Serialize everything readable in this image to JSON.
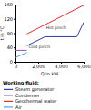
{
  "chart_data": {
    "type": "line",
    "x_label": "Q in kW",
    "y_label": "t in °C",
    "xlim": [
      0,
      6000
    ],
    "xticks": [
      0,
      {
        "value": 2000,
        "label": "2,000"
      },
      {
        "value": 4000,
        "label": "4,000"
      },
      {
        "value": 6000,
        "label": "6,000"
      }
    ],
    "ylim": [
      0,
      160
    ],
    "yticks": [
      0,
      40,
      80,
      120,
      160
    ],
    "grid": false,
    "legend_title": "Working fluid:",
    "legend": "bottom",
    "series": [
      {
        "name": "Steam generator",
        "color": "#2c3fa0",
        "x": [
          1000,
          2600,
          5400,
          6000
        ],
        "values": [
          45,
          70,
          70,
          110
        ]
      },
      {
        "name": "Condenser",
        "color": "#8a4fb0",
        "x": [
          0,
          1000
        ],
        "values": [
          32,
          32
        ]
      },
      {
        "name": "Geothermal water",
        "color": "#e0302a",
        "x": [
          1000,
          6000
        ],
        "values": [
          78,
          158
        ]
      },
      {
        "name": "Air",
        "color": "#45a5e0",
        "x": [
          0,
          1000
        ],
        "values": [
          12,
          26
        ]
      }
    ],
    "annotations": [
      {
        "text": "Hot pinch",
        "x": 2700,
        "y": 92
      },
      {
        "text": "Cold pinch",
        "x": 1150,
        "y": 38
      }
    ]
  }
}
